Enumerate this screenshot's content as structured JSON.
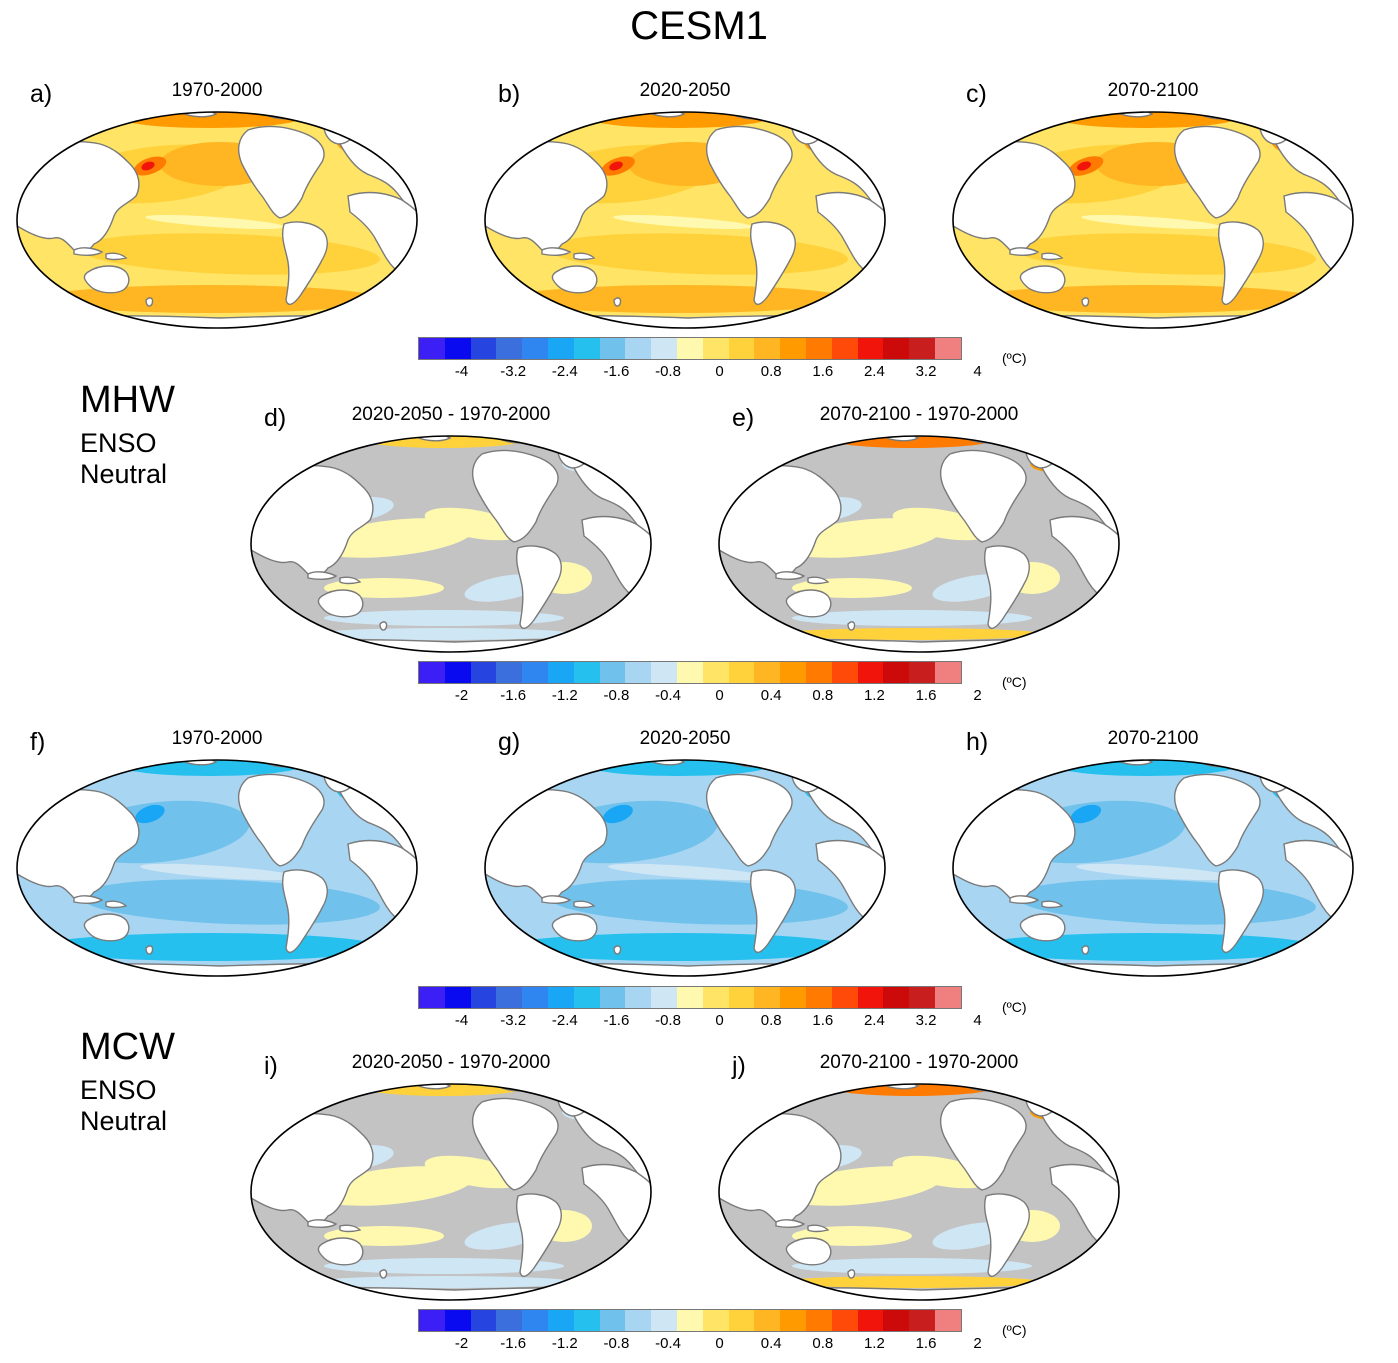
{
  "title": "CESM1",
  "sections": [
    {
      "name": "MHW",
      "lines": [
        "ENSO",
        "Neutral"
      ]
    },
    {
      "name": "MCW",
      "lines": [
        "ENSO",
        "Neutral"
      ]
    }
  ],
  "panels": [
    {
      "label": "a)",
      "title": "1970-2000",
      "field": "warm_abs",
      "intensity": 0.5
    },
    {
      "label": "b)",
      "title": "2020-2050",
      "field": "warm_abs",
      "intensity": 0.6
    },
    {
      "label": "c)",
      "title": "2070-2100",
      "field": "warm_abs",
      "intensity": 0.7
    },
    {
      "label": "d)",
      "title": "2020-2050 - 1970-2000",
      "field": "diff",
      "intensity": 0.3
    },
    {
      "label": "e)",
      "title": "2070-2100 - 1970-2000",
      "field": "diff",
      "intensity": 0.6
    },
    {
      "label": "f)",
      "title": "1970-2000",
      "field": "cold_abs",
      "intensity": 0.5
    },
    {
      "label": "g)",
      "title": "2020-2050",
      "field": "cold_abs",
      "intensity": 0.55
    },
    {
      "label": "h)",
      "title": "2070-2100",
      "field": "cold_abs",
      "intensity": 0.6
    },
    {
      "label": "i)",
      "title": "2020-2050 - 1970-2000",
      "field": "diff",
      "intensity": 0.3
    },
    {
      "label": "j)",
      "title": "2070-2100 - 1970-2000",
      "field": "diff",
      "intensity": 0.55
    }
  ],
  "colorbars": [
    {
      "ticks": [
        "-4",
        "-3.2",
        "-2.4",
        "-1.6",
        "-0.8",
        "0",
        "0.8",
        "1.6",
        "2.4",
        "3.2",
        "4"
      ],
      "unit": "(ºC)"
    },
    {
      "ticks": [
        "-2",
        "-1.6",
        "-1.2",
        "-0.8",
        "-0.4",
        "0",
        "0.4",
        "0.8",
        "1.2",
        "1.6",
        "2"
      ],
      "unit": "(ºC)"
    },
    {
      "ticks": [
        "-4",
        "-3.2",
        "-2.4",
        "-1.6",
        "-0.8",
        "0",
        "0.8",
        "1.6",
        "2.4",
        "3.2",
        "4"
      ],
      "unit": "(ºC)"
    },
    {
      "ticks": [
        "-2",
        "-1.6",
        "-1.2",
        "-0.8",
        "-0.4",
        "0",
        "0.4",
        "0.8",
        "1.2",
        "1.6",
        "2"
      ],
      "unit": "(ºC)"
    }
  ],
  "palette": [
    "#3b1ff5",
    "#0a0af0",
    "#2645e0",
    "#3c6fde",
    "#2f86f0",
    "#18a6f5",
    "#25c0ee",
    "#70c2ec",
    "#a8d6f2",
    "#cfe6f5",
    "#fff9b0",
    "#ffe466",
    "#ffd13a",
    "#ffb622",
    "#ff9a00",
    "#ff7a00",
    "#ff4a0a",
    "#f0140a",
    "#cc0a0a",
    "#c81e1e",
    "#f08080"
  ],
  "land_color": "#ffffff",
  "coast_color": "#7a7a7a",
  "insignificant_color": "#c3c3c3"
}
